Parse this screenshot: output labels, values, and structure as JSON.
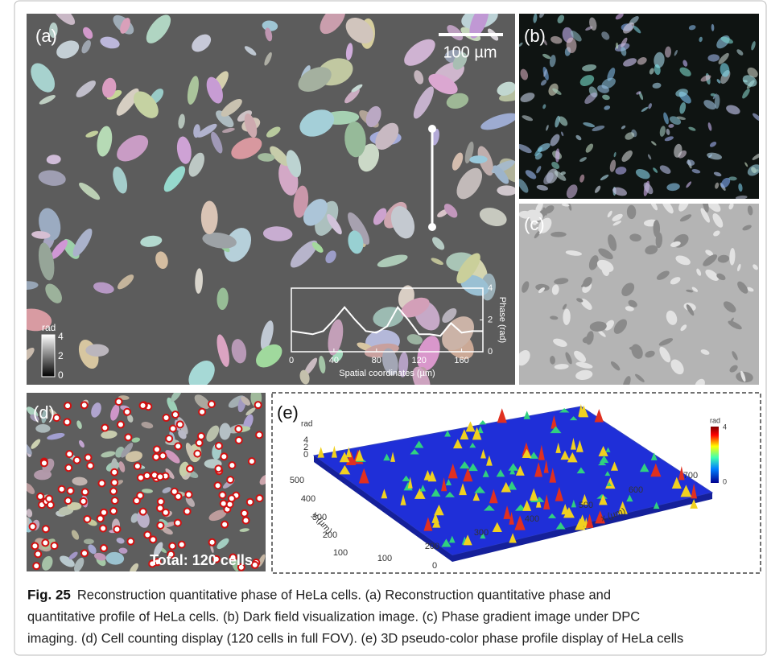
{
  "panels": {
    "a": {
      "label": "(a)",
      "scale_bar": "100 µm",
      "colorbar": {
        "title": "rad",
        "ticks": [
          4,
          2,
          0
        ]
      },
      "inset": {
        "x_label": "Spatial coordinates (µm)",
        "y_label": "Phase (rad)",
        "xlim": [
          0,
          180
        ],
        "ylim": [
          0,
          4
        ],
        "xticks": [
          0,
          40,
          80,
          120,
          160
        ],
        "yticks": [
          0,
          2,
          4
        ],
        "x": [
          0,
          10,
          20,
          30,
          40,
          50,
          60,
          70,
          80,
          90,
          100,
          110,
          120,
          130,
          140,
          150,
          160,
          170,
          180
        ],
        "values": [
          1.3,
          1.2,
          1.1,
          1.3,
          2.0,
          2.8,
          2.0,
          1.3,
          1.2,
          1.6,
          2.8,
          2.0,
          1.1,
          1.1,
          1.0,
          1.8,
          1.2,
          1.3,
          1.3
        ]
      }
    },
    "b": {
      "label": "(b)"
    },
    "c": {
      "label": "(c)"
    },
    "d": {
      "label": "(d)",
      "total": "Total: 120 cells"
    },
    "e": {
      "label": "(e)",
      "z_title": "rad",
      "zticks": [
        4,
        2,
        0
      ],
      "y_label": "y (µm)",
      "x_label": "x (µm)",
      "yticks": [
        0,
        100,
        200,
        300,
        400,
        500
      ],
      "xticks": [
        100,
        200,
        300,
        400,
        500,
        600,
        700
      ],
      "colorbar": {
        "title": "rad",
        "ticks": [
          4,
          0
        ]
      }
    }
  },
  "caption": {
    "label": "Fig. 25",
    "lines": [
      "Reconstruction quantitative phase of HeLa cells. (a) Reconstruction quantitative phase and",
      "quantitative profile of HeLa cells. (b) Dark field visualization image. (c) Phase gradient image under DPC",
      "imaging. (d) Cell counting display (120 cells in full FOV). (e) 3D pseudo-color phase profile display of HeLa cells"
    ]
  }
}
